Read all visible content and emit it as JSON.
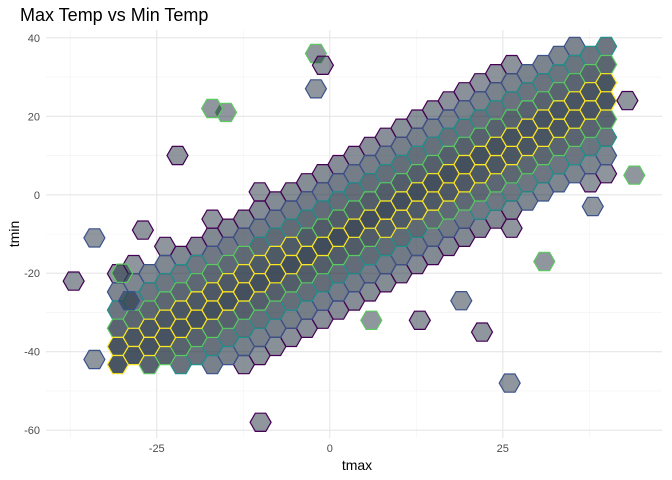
{
  "chart_data": {
    "type": "hexbin",
    "title": "Max Temp vs Min Temp",
    "xlabel": "tmax",
    "ylabel": "tmin",
    "xlim": [
      -41,
      48
    ],
    "ylim": [
      -62,
      42
    ],
    "x_ticks": [
      -25,
      0,
      25
    ],
    "y_ticks": [
      -60,
      -40,
      -20,
      0,
      20,
      40
    ],
    "grid": true,
    "legend": "none",
    "colors": {
      "fill": "#1f2d3d",
      "fill_opacity": 0.5,
      "outline_scale": [
        "#440154",
        "#3b528b",
        "#21918c",
        "#5ec962",
        "#fde725"
      ]
    },
    "band": {
      "slope": 0.95,
      "intercept": -12,
      "x_range": [
        -30,
        40
      ],
      "thickness": 21
    },
    "outliers": [
      [
        -37,
        -22
      ],
      [
        -34,
        -11
      ],
      [
        -30,
        -20
      ],
      [
        -27,
        -9
      ],
      [
        -29,
        -27
      ],
      [
        -2,
        36
      ],
      [
        -1,
        33
      ],
      [
        -2,
        27
      ],
      [
        -15,
        21
      ],
      [
        -10,
        -58
      ],
      [
        26,
        -48
      ],
      [
        44,
        5
      ],
      [
        43,
        24
      ],
      [
        38,
        -3
      ],
      [
        31,
        -17
      ],
      [
        22,
        -35
      ],
      [
        19,
        -27
      ],
      [
        6,
        -32
      ],
      [
        13,
        -32
      ],
      [
        -34,
        -42
      ],
      [
        -17,
        22
      ],
      [
        -22,
        10
      ]
    ]
  }
}
